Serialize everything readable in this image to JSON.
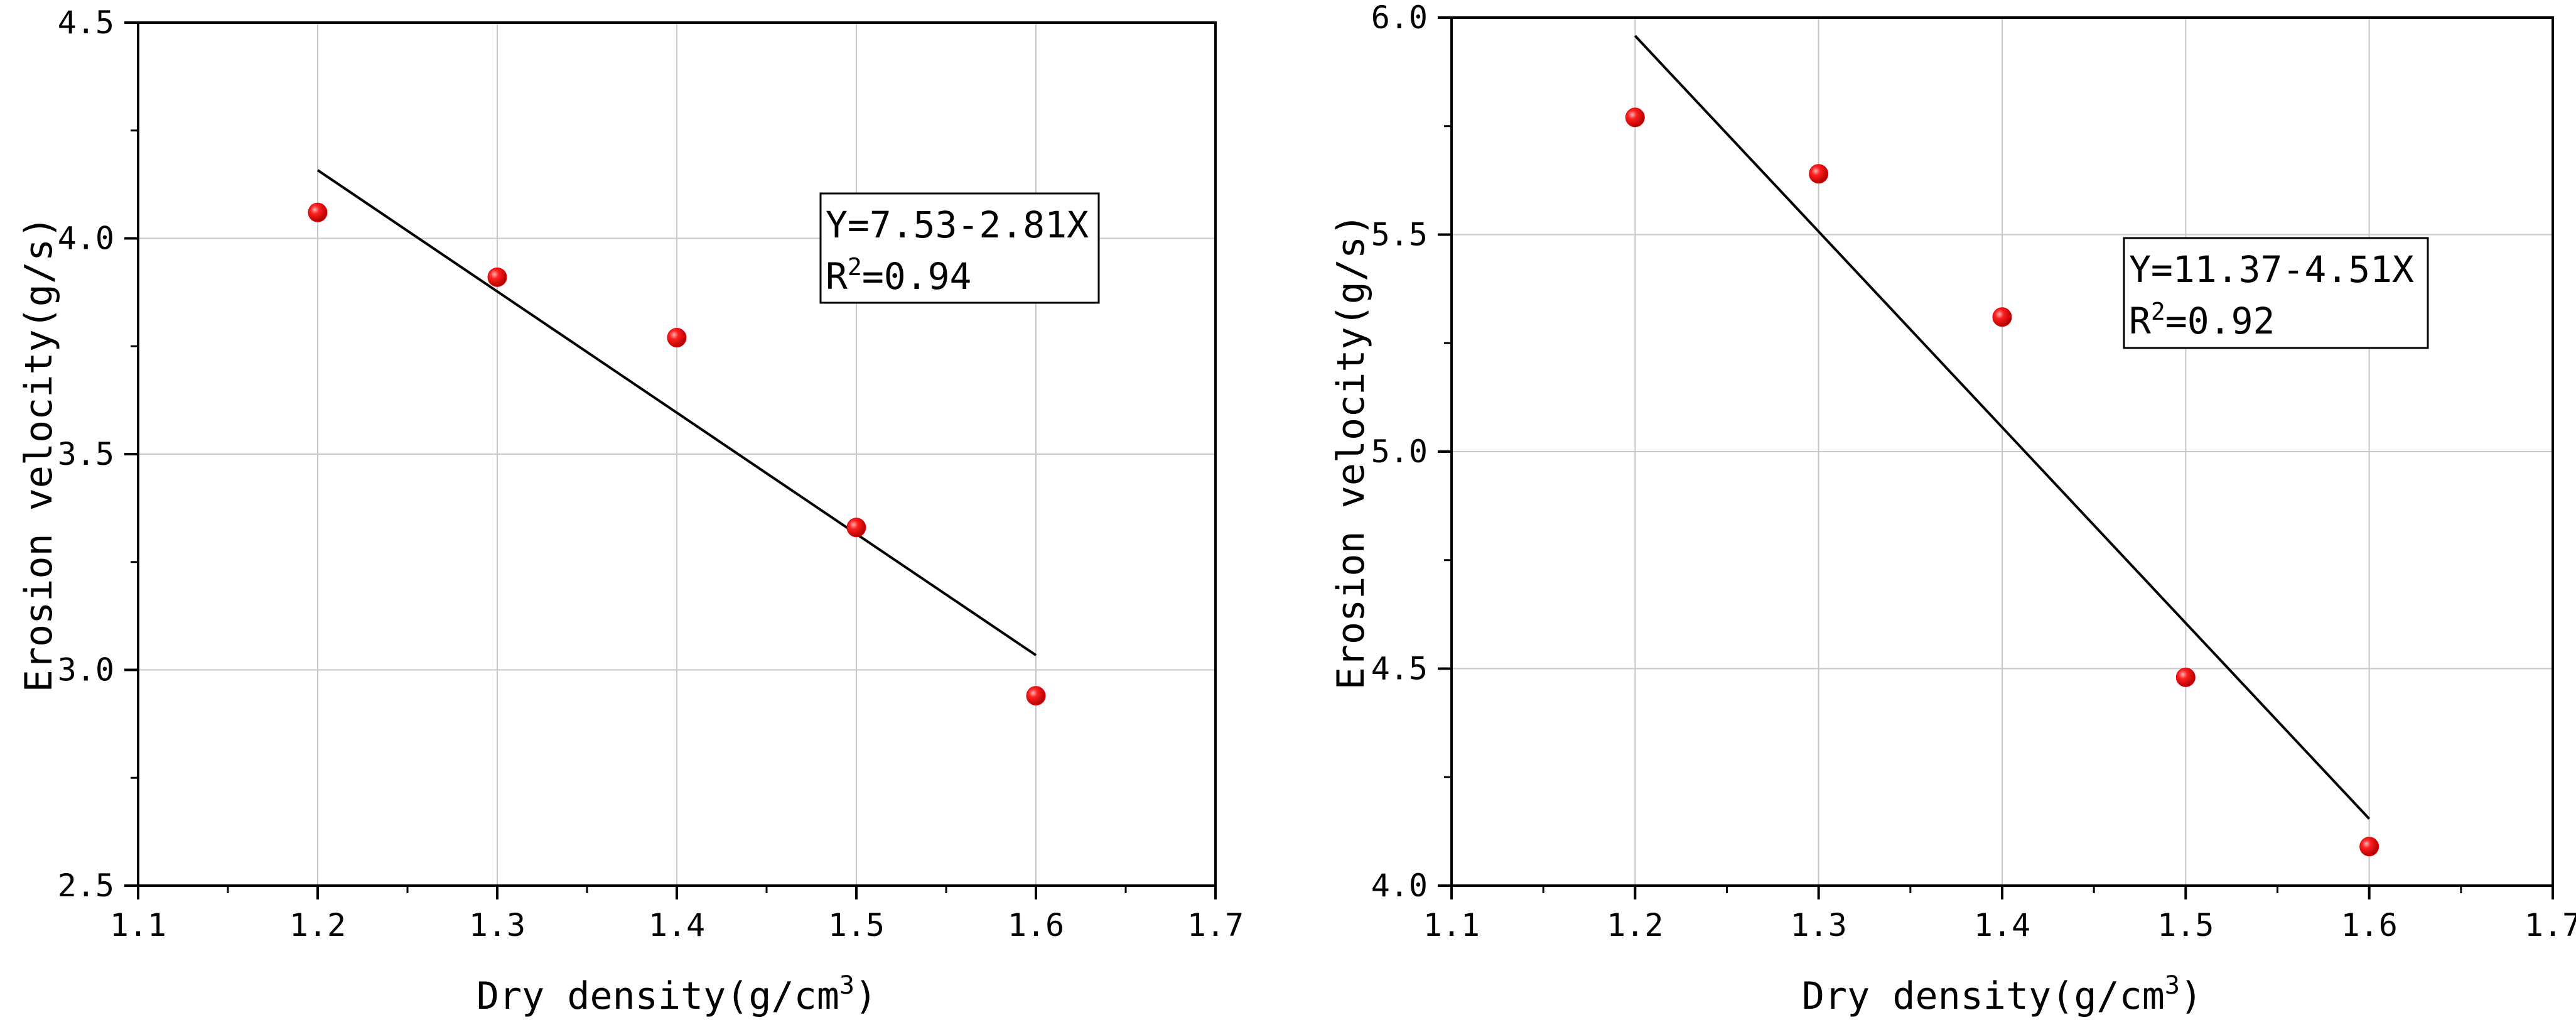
{
  "chart_data": [
    {
      "type": "scatter",
      "xlabel": "Dry density(g/cm",
      "xlabel_sup": "3",
      "xlabel_end": ")",
      "ylabel": "Erosion velocity(g/s)",
      "xlim": [
        1.1,
        1.7
      ],
      "ylim": [
        2.5,
        4.5
      ],
      "x_ticks": [
        1.1,
        1.2,
        1.3,
        1.4,
        1.5,
        1.6,
        1.7
      ],
      "x_tick_labels": [
        "1.1",
        "1.2",
        "1.3",
        "1.4",
        "1.5",
        "1.6",
        "1.7"
      ],
      "y_ticks": [
        2.5,
        3.0,
        3.5,
        4.0,
        4.5
      ],
      "y_tick_labels": [
        "2.5",
        "3.0",
        "3.5",
        "4.0",
        "4.5"
      ],
      "grid": true,
      "marker_color": "#e8000b",
      "points": [
        {
          "x": 1.2,
          "y": 4.06
        },
        {
          "x": 1.3,
          "y": 3.91
        },
        {
          "x": 1.4,
          "y": 3.77
        },
        {
          "x": 1.5,
          "y": 3.33
        },
        {
          "x": 1.6,
          "y": 2.94
        }
      ],
      "fit_line": {
        "x": [
          1.2,
          1.6
        ],
        "y": [
          4.158,
          3.034
        ]
      },
      "equation": "Y=7.53-2.81X",
      "r2_prefix": "R",
      "r2_sup": "2",
      "r2_value": "=0.94"
    },
    {
      "type": "scatter",
      "xlabel": "Dry density(g/cm",
      "xlabel_sup": "3",
      "xlabel_end": ")",
      "ylabel": "Erosion velocity(g/s)",
      "xlim": [
        1.1,
        1.7
      ],
      "ylim": [
        4.0,
        6.0
      ],
      "x_ticks": [
        1.1,
        1.2,
        1.3,
        1.4,
        1.5,
        1.6,
        1.7
      ],
      "x_tick_labels": [
        "1.1",
        "1.2",
        "1.3",
        "1.4",
        "1.5",
        "1.6",
        "1.7"
      ],
      "y_ticks": [
        4.0,
        4.5,
        5.0,
        5.5,
        6.0
      ],
      "y_tick_labels": [
        "4.0",
        "4.5",
        "5.0",
        "5.5",
        "6.0"
      ],
      "grid": true,
      "marker_color": "#e8000b",
      "points": [
        {
          "x": 1.2,
          "y": 5.77
        },
        {
          "x": 1.3,
          "y": 5.64
        },
        {
          "x": 1.4,
          "y": 5.31
        },
        {
          "x": 1.5,
          "y": 4.48
        },
        {
          "x": 1.6,
          "y": 4.09
        }
      ],
      "fit_line": {
        "x": [
          1.2,
          1.6
        ],
        "y": [
          5.958,
          4.154
        ]
      },
      "equation": "Y=11.37-4.51X",
      "r2_prefix": "R",
      "r2_sup": "2",
      "r2_value": "=0.92"
    }
  ]
}
